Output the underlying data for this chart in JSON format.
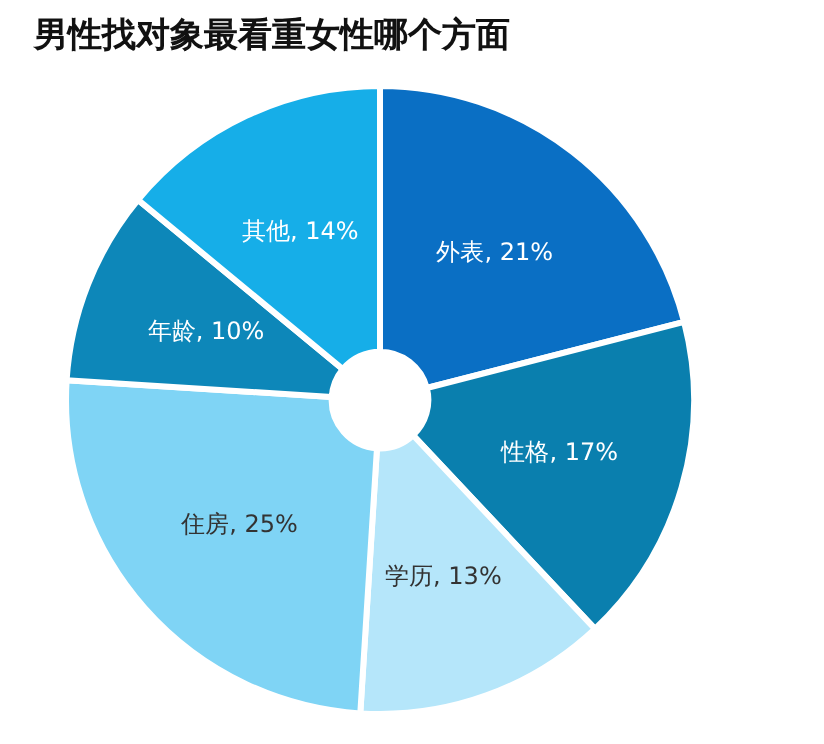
{
  "chart_data": {
    "type": "donut",
    "title": "男性找对象最看重女性哪个方面",
    "categories": [
      "外表",
      "性格",
      "学历",
      "住房",
      "年龄",
      "其他"
    ],
    "values": [
      21,
      17,
      13,
      25,
      10,
      14
    ],
    "value_labels": [
      "21%",
      "17%",
      "13%",
      "25%",
      "10%",
      "14%"
    ],
    "colors": [
      "#0a6fc4",
      "#0a7fae",
      "#b5e6fa",
      "#7fd4f5",
      "#0d87b9",
      "#16aee8"
    ],
    "legend": false
  }
}
